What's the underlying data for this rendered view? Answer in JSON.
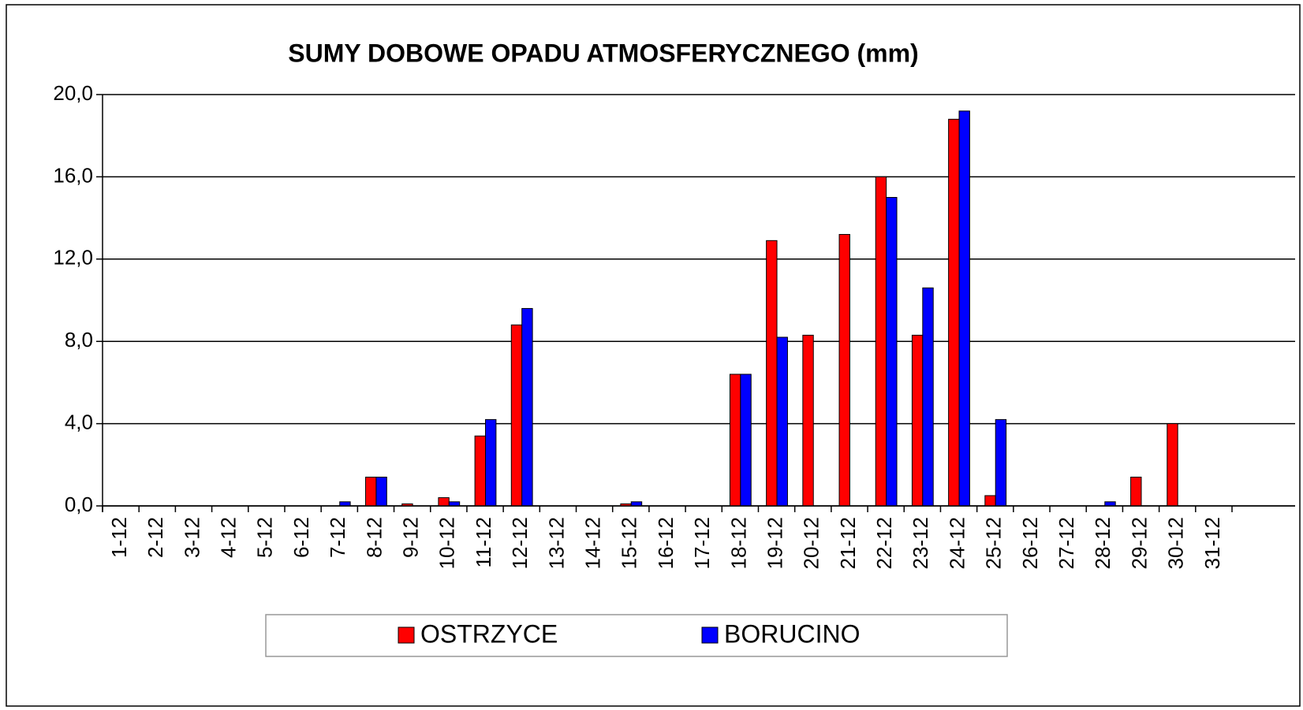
{
  "chart_data": {
    "type": "bar",
    "title": "SUMY DOBOWE OPADU ATMOSFERYCZNEGO  (mm)",
    "categories": [
      "1-12",
      "2-12",
      "3-12",
      "4-12",
      "5-12",
      "6-12",
      "7-12",
      "8-12",
      "9-12",
      "10-12",
      "11-12",
      "12-12",
      "13-12",
      "14-12",
      "15-12",
      "16-12",
      "17-12",
      "18-12",
      "19-12",
      "20-12",
      "21-12",
      "22-12",
      "23-12",
      "24-12",
      "25-12",
      "26-12",
      "27-12",
      "28-12",
      "29-12",
      "30-12",
      "31-12"
    ],
    "series": [
      {
        "name": "OSTRZYCE",
        "color": "#ff0000",
        "values": [
          0,
          0,
          0,
          0,
          0,
          0,
          0,
          1.4,
          0.1,
          0.4,
          3.4,
          8.8,
          0,
          0,
          0.1,
          0,
          0,
          6.4,
          12.9,
          8.3,
          13.2,
          16.0,
          8.3,
          18.8,
          0.5,
          0,
          0,
          0,
          1.4,
          4.0,
          0
        ]
      },
      {
        "name": "BORUCINO",
        "color": "#0000ff",
        "values": [
          0,
          0,
          0,
          0,
          0,
          0,
          0.2,
          1.4,
          0,
          0.2,
          4.2,
          9.6,
          0,
          0,
          0.2,
          0,
          0,
          6.4,
          8.2,
          0,
          0,
          15.0,
          10.6,
          19.2,
          4.2,
          0,
          0,
          0.2,
          0,
          0,
          0
        ]
      }
    ],
    "ylim": [
      0,
      20
    ],
    "yticks": [
      {
        "value": 0,
        "label": "0,0"
      },
      {
        "value": 4,
        "label": "4,0"
      },
      {
        "value": 8,
        "label": "8,0"
      },
      {
        "value": 12,
        "label": "12,0"
      },
      {
        "value": 16,
        "label": "16,0"
      },
      {
        "value": 20,
        "label": "20,0"
      }
    ],
    "grid": true,
    "legend": "bottom"
  }
}
